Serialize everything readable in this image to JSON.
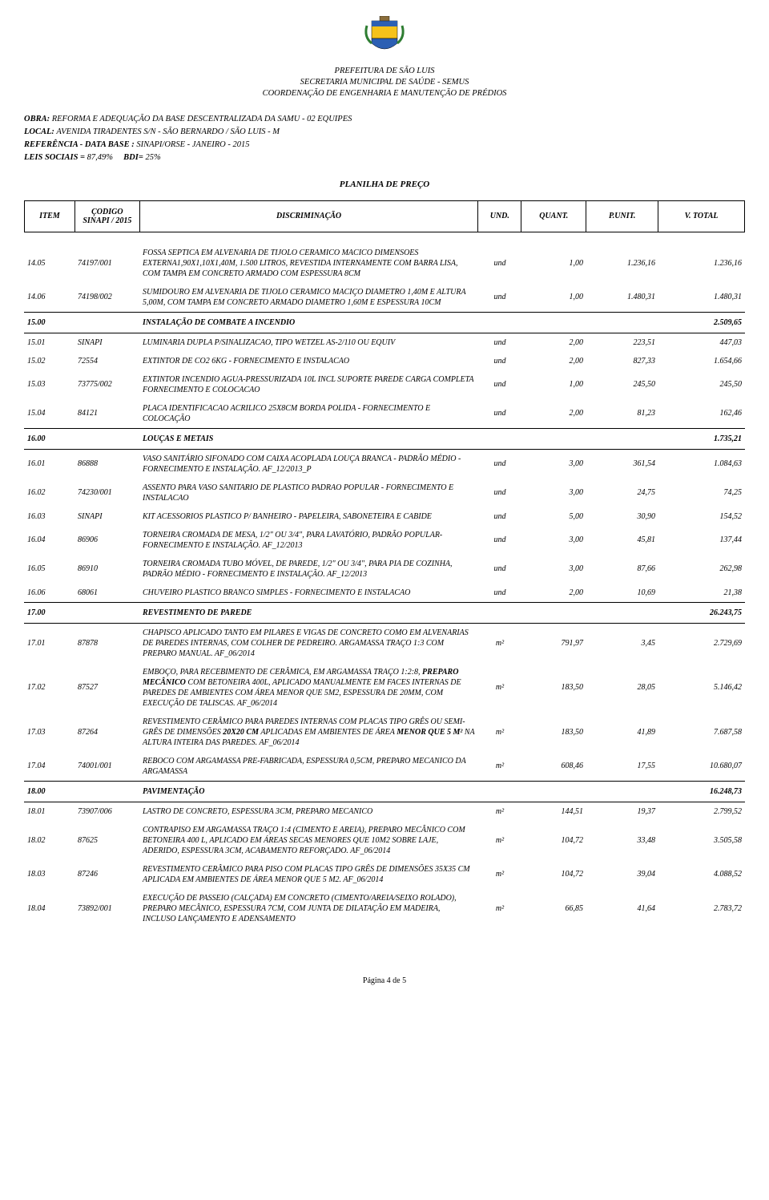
{
  "header": {
    "org1": "PREFEITURA DE SÃO LUIS",
    "org2": "SECRETARIA MUNICIPAL DE SAÚDE - SEMUS",
    "org3": "COORDENAÇÃO DE ENGENHARIA E MANUTENÇÃO DE PRÉDIOS"
  },
  "meta": {
    "obra_lbl": "OBRA:",
    "obra": "REFORMA E ADEQUAÇÃO DA BASE DESCENTRALIZADA DA SAMU - 02 EQUIPES",
    "local_lbl": "LOCAL:",
    "local": "AVENIDA TIRADENTES S/N - SÃO BERNARDO / SÃO LUIS - M",
    "ref_lbl": "REFERÊNCIA - DATA BASE :",
    "ref": "SINAPI/ORSE - JANEIRO - 2015",
    "leis_lbl": "LEIS SOCIAIS =",
    "leis": "87,49%",
    "bdi_lbl": "BDI=",
    "bdi": "25%"
  },
  "title": "PLANILHA DE PREÇO",
  "columns": {
    "item": "ITEM",
    "codigo": "ÇODIGO SINAPI / 2015",
    "desc": "DISCRIMINAÇÃO",
    "und": "UND.",
    "quant": "QUANT.",
    "punit": "P.UNIT.",
    "vtotal": "V. TOTAL"
  },
  "rows": [
    {
      "type": "item",
      "item": "14.05",
      "code": "74197/001",
      "desc": "FOSSA SEPTICA EM ALVENARIA DE TIJOLO CERAMICO MACICO DIMENSOES EXTERNA1,90X1,10X1,40M, 1.500 LITROS, REVESTIDA INTERNAMENTE COM BARRA LISA, COM TAMPA EM CONCRETO ARMADO COM ESPESSURA 8CM",
      "und": "und",
      "qty": "1,00",
      "unit": "1.236,16",
      "total": "1.236,16"
    },
    {
      "type": "item",
      "item": "14.06",
      "code": "74198/002",
      "desc": "SUMIDOURO EM ALVENARIA DE TIJOLO CERAMICO MACIÇO DIAMETRO 1,40M E ALTURA 5,00M, COM TAMPA EM CONCRETO ARMADO DIAMETRO 1,60M E ESPESSURA 10CM",
      "und": "und",
      "qty": "1,00",
      "unit": "1.480,31",
      "total": "1.480,31"
    },
    {
      "type": "section",
      "item": "15.00",
      "desc": "INSTALAÇÃO DE COMBATE A INCENDIO",
      "total": "2.509,65"
    },
    {
      "type": "item",
      "item": "15.01",
      "code": "SINAPI",
      "desc": "LUMINARIA DUPLA P/SINALIZACAO, TIPO WETZEL AS-2/110 OU EQUIV",
      "und": "und",
      "qty": "2,00",
      "unit": "223,51",
      "total": "447,03"
    },
    {
      "type": "item",
      "item": "15.02",
      "code": "72554",
      "desc": "EXTINTOR DE CO2 6KG - FORNECIMENTO E INSTALACAO",
      "und": "und",
      "qty": "2,00",
      "unit": "827,33",
      "total": "1.654,66"
    },
    {
      "type": "item",
      "item": "15.03",
      "code": "73775/002",
      "desc": "EXTINTOR INCENDIO AGUA-PRESSURIZADA 10L INCL SUPORTE PAREDE CARGA COMPLETA FORNECIMENTO E COLOCACAO",
      "und": "und",
      "qty": "1,00",
      "unit": "245,50",
      "total": "245,50"
    },
    {
      "type": "item",
      "item": "15.04",
      "code": "84121",
      "desc": "PLACA IDENTIFICACAO ACRILICO 25X8CM BORDA POLIDA - FORNECIMENTO E COLOCAÇÃO",
      "und": "und",
      "qty": "2,00",
      "unit": "81,23",
      "total": "162,46"
    },
    {
      "type": "section",
      "item": "16.00",
      "desc": "LOUÇAS E METAIS",
      "total": "1.735,21"
    },
    {
      "type": "item",
      "item": "16.01",
      "code": "86888",
      "desc": "VASO SANITÁRIO SIFONADO COM CAIXA ACOPLADA LOUÇA BRANCA - PADRÃO MÉDIO - FORNECIMENTO E INSTALAÇÃO. AF_12/2013_P",
      "und": "und",
      "qty": "3,00",
      "unit": "361,54",
      "total": "1.084,63"
    },
    {
      "type": "item",
      "item": "16.02",
      "code": "74230/001",
      "desc": "ASSENTO PARA VASO SANITARIO DE PLASTICO PADRAO POPULAR - FORNECIMENTO E INSTALACAO",
      "und": "und",
      "qty": "3,00",
      "unit": "24,75",
      "total": "74,25"
    },
    {
      "type": "item",
      "item": "16.03",
      "code": "SINAPI",
      "desc": "KIT ACESSORIOS PLASTICO P/ BANHEIRO - PAPELEIRA, SABONETEIRA E CABIDE",
      "und": "und",
      "qty": "5,00",
      "unit": "30,90",
      "total": "154,52"
    },
    {
      "type": "item",
      "item": "16.04",
      "code": "86906",
      "desc": "TORNEIRA CROMADA DE MESA, 1/2\" OU 3/4\", PARA LAVATÓRIO, PADRÃO POPULAR- FORNECIMENTO E INSTALAÇÃO. AF_12/2013",
      "und": "und",
      "qty": "3,00",
      "unit": "45,81",
      "total": "137,44"
    },
    {
      "type": "item",
      "item": "16.05",
      "code": "86910",
      "desc": "TORNEIRA CROMADA TUBO MÓVEL, DE PAREDE, 1/2\" OU 3/4\", PARA PIA DE COZINHA, PADRÃO MÉDIO - FORNECIMENTO E INSTALAÇÃO. AF_12/2013",
      "und": "und",
      "qty": "3,00",
      "unit": "87,66",
      "total": "262,98"
    },
    {
      "type": "item",
      "item": "16.06",
      "code": "68061",
      "desc": "CHUVEIRO PLASTICO BRANCO SIMPLES - FORNECIMENTO E INSTALACAO",
      "und": "und",
      "qty": "2,00",
      "unit": "10,69",
      "total": "21,38"
    },
    {
      "type": "section",
      "item": "17.00",
      "desc": "REVESTIMENTO DE PAREDE",
      "total": "26.243,75"
    },
    {
      "type": "item",
      "item": "17.01",
      "code": "87878",
      "desc": "CHAPISCO APLICADO TANTO EM PILARES E VIGAS DE CONCRETO COMO EM ALVENARIAS DE PAREDES INTERNAS, COM COLHER DE PEDREIRO. ARGAMASSA TRAÇO 1:3 COM PREPARO MANUAL. AF_06/2014",
      "und": "m²",
      "qty": "791,97",
      "unit": "3,45",
      "total": "2.729,69"
    },
    {
      "type": "item",
      "item": "17.02",
      "code": "87527",
      "desc_html": "EMBOÇO, PARA RECEBIMENTO DE CERÂMICA, EM ARGAMASSA TRAÇO 1:2:8, <span class='b'>PREPARO MECÂNICO</span> COM BETONEIRA 400L, APLICADO MANUALMENTE EM FACES INTERNAS DE PAREDES DE AMBIENTES COM ÁREA MENOR QUE 5M2, ESPESSURA DE 20MM, COM EXECUÇÃO DE TALISCAS. AF_06/2014",
      "und": "m²",
      "qty": "183,50",
      "unit": "28,05",
      "total": "5.146,42"
    },
    {
      "type": "item",
      "item": "17.03",
      "code": "87264",
      "desc_html": "REVESTIMENTO CERÂMICO PARA PAREDES INTERNAS COM PLACAS TIPO GRÊS OU SEMI-GRÊS DE DIMENSÕES <span class='b'>20X20 CM</span> APLICADAS EM AMBIENTES DE ÁREA <span class='b'>MENOR QUE 5 M²</span> NA ALTURA INTEIRA DAS PAREDES. AF_06/2014",
      "und": "m²",
      "qty": "183,50",
      "unit": "41,89",
      "total": "7.687,58"
    },
    {
      "type": "item",
      "item": "17.04",
      "code": "74001/001",
      "desc": "REBOCO COM ARGAMASSA PRE-FABRICADA, ESPESSURA 0,5CM, PREPARO MECANICO DA ARGAMASSA",
      "und": "m²",
      "qty": "608,46",
      "unit": "17,55",
      "total": "10.680,07"
    },
    {
      "type": "section",
      "item": "18.00",
      "desc": "PAVIMENTAÇÃO",
      "total": "16.248,73"
    },
    {
      "type": "item",
      "item": "18.01",
      "code": "73907/006",
      "desc": "LASTRO DE CONCRETO, ESPESSURA 3CM, PREPARO MECANICO",
      "und": "m²",
      "qty": "144,51",
      "unit": "19,37",
      "total": "2.799,52"
    },
    {
      "type": "item",
      "item": "18.02",
      "code": "87625",
      "desc": "CONTRAPISO EM ARGAMASSA TRAÇO 1:4 (CIMENTO E AREIA), PREPARO MECÂNICO COM BETONEIRA 400 L, APLICADO EM ÁREAS SECAS MENORES QUE 10M2 SOBRE LAJE, ADERIDO, ESPESSURA 3CM, ACABAMENTO REFORÇADO. AF_06/2014",
      "und": "m²",
      "qty": "104,72",
      "unit": "33,48",
      "total": "3.505,58"
    },
    {
      "type": "item",
      "item": "18.03",
      "code": "87246",
      "desc": "REVESTIMENTO CERÂMICO PARA PISO COM PLACAS TIPO GRÊS DE DIMENSÕES 35X35 CM APLICADA EM AMBIENTES DE ÁREA MENOR QUE 5 M2. AF_06/2014",
      "und": "m²",
      "qty": "104,72",
      "unit": "39,04",
      "total": "4.088,52"
    },
    {
      "type": "item",
      "item": "18.04",
      "code": "73892/001",
      "desc": "EXECUÇÃO DE PASSEIO (CALÇADA) EM CONCRETO (CIMENTO/AREIA/SEIXO ROLADO), PREPARO MECÂNICO, ESPESSURA 7CM, COM JUNTA DE DILATAÇÃO EM MADEIRA, INCLUSO LANÇAMENTO E ADENSAMENTO",
      "und": "m²",
      "qty": "66,85",
      "unit": "41,64",
      "total": "2.783,72"
    }
  ],
  "footer": "Página 4 de 5"
}
